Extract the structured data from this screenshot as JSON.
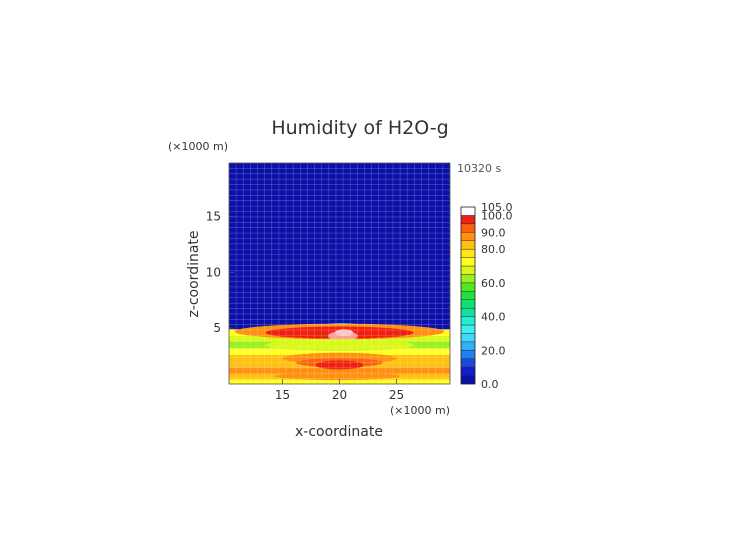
{
  "chart_data": {
    "type": "heatmap",
    "title": "Humidity of H2O-g",
    "time_label": "10320 s",
    "xlabel": "x-coordinate",
    "ylabel": "z-coordinate",
    "x_multiplier": "(×1000 m)",
    "y_multiplier": "(×1000 m)",
    "xlim": [
      10.3,
      29.7
    ],
    "ylim": [
      0,
      19.8
    ],
    "x_ticks": [
      {
        "value": 15,
        "label": "15"
      },
      {
        "value": 20,
        "label": "20"
      },
      {
        "value": 25,
        "label": "25"
      }
    ],
    "y_ticks": [
      {
        "value": 5,
        "label": "5"
      },
      {
        "value": 10,
        "label": "10"
      },
      {
        "value": 15,
        "label": "15"
      }
    ],
    "grid": true,
    "colorbar": {
      "range": [
        0,
        105
      ],
      "bands": [
        {
          "from": 0,
          "to": 5,
          "color": "#0a10a8"
        },
        {
          "from": 5,
          "to": 10,
          "color": "#1020c8"
        },
        {
          "from": 10,
          "to": 15,
          "color": "#1848e0"
        },
        {
          "from": 15,
          "to": 20,
          "color": "#2080f0"
        },
        {
          "from": 20,
          "to": 25,
          "color": "#30b0f8"
        },
        {
          "from": 25,
          "to": 30,
          "color": "#40d8f8"
        },
        {
          "from": 30,
          "to": 35,
          "color": "#40f0f0"
        },
        {
          "from": 35,
          "to": 40,
          "color": "#20f0d0"
        },
        {
          "from": 40,
          "to": 45,
          "color": "#10e0a0"
        },
        {
          "from": 45,
          "to": 50,
          "color": "#10e070"
        },
        {
          "from": 50,
          "to": 55,
          "color": "#20e040"
        },
        {
          "from": 55,
          "to": 60,
          "color": "#50e820"
        },
        {
          "from": 60,
          "to": 65,
          "color": "#98f020"
        },
        {
          "from": 65,
          "to": 70,
          "color": "#d8f818"
        },
        {
          "from": 70,
          "to": 75,
          "color": "#ffff20"
        },
        {
          "from": 75,
          "to": 80,
          "color": "#ffe818"
        },
        {
          "from": 80,
          "to": 85,
          "color": "#ffc010"
        },
        {
          "from": 85,
          "to": 90,
          "color": "#ff9010"
        },
        {
          "from": 90,
          "to": 95,
          "color": "#ff6010"
        },
        {
          "from": 95,
          "to": 100,
          "color": "#f02010"
        },
        {
          "from": 100,
          "to": 105,
          "color": "#ffffff"
        }
      ],
      "labels": [
        {
          "value": 0,
          "label": "0.0"
        },
        {
          "value": 20,
          "label": "20.0"
        },
        {
          "value": 40,
          "label": "40.0"
        },
        {
          "value": 60,
          "label": "60.0"
        },
        {
          "value": 80,
          "label": "80.0"
        },
        {
          "value": 90,
          "label": "90.0"
        },
        {
          "value": 100,
          "label": "100.0"
        },
        {
          "value": 105,
          "label": "105.0"
        }
      ]
    },
    "layers": [
      {
        "z_bottom": 0,
        "z_top": 0.4,
        "color": "#ffff20"
      },
      {
        "z_bottom": 0.4,
        "z_top": 0.9,
        "color": "#ffc010"
      },
      {
        "z_bottom": 0.9,
        "z_top": 1.5,
        "color": "#ff9010"
      },
      {
        "z_bottom": 1.5,
        "z_top": 2.6,
        "color": "#ffc010"
      },
      {
        "z_bottom": 2.6,
        "z_top": 3.2,
        "color": "#ffff20"
      },
      {
        "z_bottom": 3.2,
        "z_top": 3.8,
        "color": "#98f020"
      },
      {
        "z_bottom": 3.8,
        "z_top": 4.3,
        "color": "#d8f818"
      },
      {
        "z_bottom": 4.3,
        "z_top": 4.9,
        "color": "#ffff20"
      },
      {
        "z_bottom": 4.9,
        "z_top": 19.8,
        "color": "#0a10a8"
      }
    ],
    "features": [
      {
        "cx": 20.2,
        "cz": 5.1,
        "rx": 2.2,
        "rz": 0.35,
        "color": "#40d8f8"
      },
      {
        "cx": 20.0,
        "cz": 4.7,
        "rx": 9.2,
        "rz": 0.7,
        "color": "#ff9010"
      },
      {
        "cx": 20.0,
        "cz": 4.6,
        "rx": 6.5,
        "rz": 0.55,
        "color": "#f02010"
      },
      {
        "cx": 20.3,
        "cz": 4.3,
        "rx": 1.3,
        "rz": 0.45,
        "color": "#ff9aa0"
      },
      {
        "cx": 20.4,
        "cz": 4.6,
        "rx": 0.8,
        "rz": 0.3,
        "color": "#f8c8c8"
      },
      {
        "cx": 20.0,
        "cz": 3.5,
        "rx": 6.5,
        "rz": 0.55,
        "color": "#d8f818"
      },
      {
        "cx": 20.0,
        "cz": 2.3,
        "rx": 5.0,
        "rz": 0.5,
        "color": "#ff9010"
      },
      {
        "cx": 20.0,
        "cz": 1.9,
        "rx": 3.8,
        "rz": 0.4,
        "color": "#ff6010"
      },
      {
        "cx": 20.0,
        "cz": 1.7,
        "rx": 2.1,
        "rz": 0.4,
        "color": "#f02010"
      },
      {
        "cx": 19.8,
        "cz": 0.7,
        "rx": 5.5,
        "rz": 0.35,
        "color": "#ff9010"
      }
    ]
  }
}
